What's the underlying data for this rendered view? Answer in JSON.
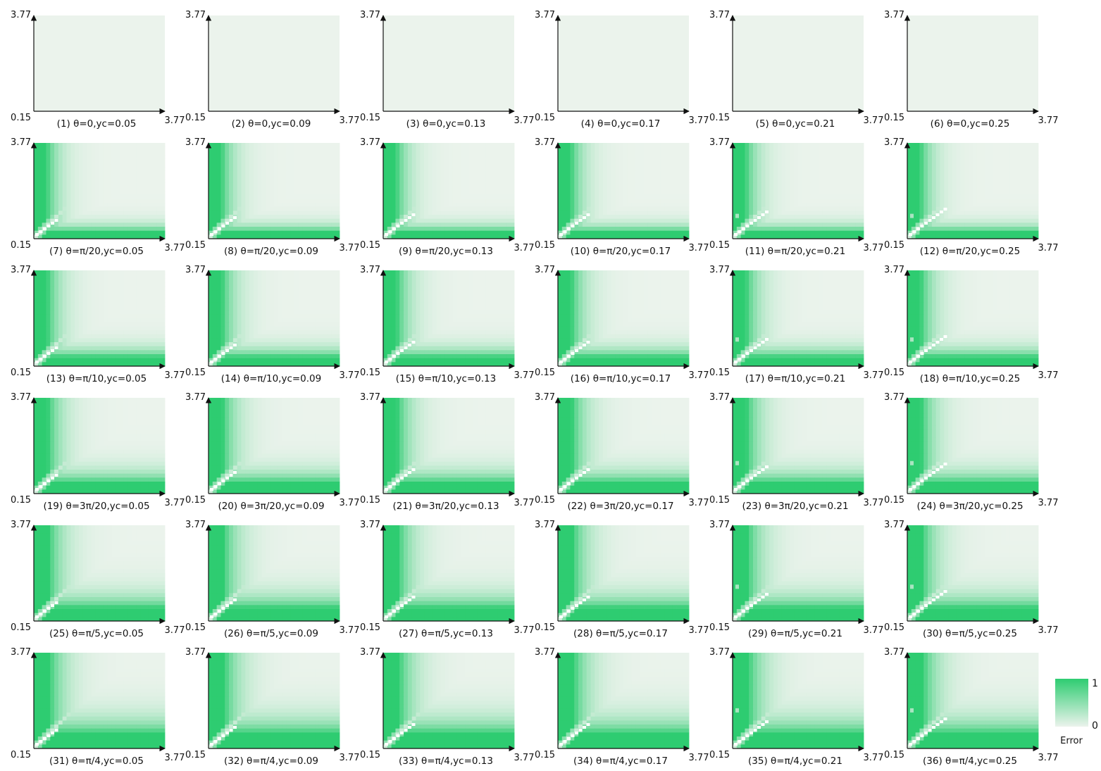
{
  "colorbar": {
    "max_label": "1",
    "min_label": "0",
    "label": "Error",
    "color_low": "#ebf3ec",
    "color_high": "#2ecc71"
  },
  "chart_data": {
    "type": "heatmap",
    "grid": "6x6",
    "x_tick_labels": [
      "0.15",
      "3.77"
    ],
    "y_tick_labels": [
      "0.15",
      "3.77"
    ],
    "xlim": [
      0.15,
      3.77
    ],
    "ylim": [
      0.15,
      3.77
    ],
    "value_range": [
      0,
      1
    ],
    "colormap": [
      "#ebf3ec",
      "#2ecc71"
    ],
    "panels": [
      {
        "label": "(1) θ=0,yc=0.05",
        "theta": "0",
        "yc": 0.05
      },
      {
        "label": "(2) θ=0,yc=0.09",
        "theta": "0",
        "yc": 0.09
      },
      {
        "label": "(3) θ=0,yc=0.13",
        "theta": "0",
        "yc": 0.13
      },
      {
        "label": "(4) θ=0,yc=0.17",
        "theta": "0",
        "yc": 0.17
      },
      {
        "label": "(5) θ=0,yc=0.21",
        "theta": "0",
        "yc": 0.21
      },
      {
        "label": "(6) θ=0,yc=0.25",
        "theta": "0",
        "yc": 0.25
      },
      {
        "label": "(7) θ=π/20,yc=0.05",
        "theta": "π/20",
        "yc": 0.05
      },
      {
        "label": "(8) θ=π/20,yc=0.09",
        "theta": "π/20",
        "yc": 0.09
      },
      {
        "label": "(9) θ=π/20,yc=0.13",
        "theta": "π/20",
        "yc": 0.13
      },
      {
        "label": "(10) θ=π/20,yc=0.17",
        "theta": "π/20",
        "yc": 0.17
      },
      {
        "label": "(11) θ=π/20,yc=0.21",
        "theta": "π/20",
        "yc": 0.21
      },
      {
        "label": "(12) θ=π/20,yc=0.25",
        "theta": "π/20",
        "yc": 0.25
      },
      {
        "label": "(13) θ=π/10,yc=0.05",
        "theta": "π/10",
        "yc": 0.05
      },
      {
        "label": "(14) θ=π/10,yc=0.09",
        "theta": "π/10",
        "yc": 0.09
      },
      {
        "label": "(15) θ=π/10,yc=0.13",
        "theta": "π/10",
        "yc": 0.13
      },
      {
        "label": "(16) θ=π/10,yc=0.17",
        "theta": "π/10",
        "yc": 0.17
      },
      {
        "label": "(17) θ=π/10,yc=0.21",
        "theta": "π/10",
        "yc": 0.21
      },
      {
        "label": "(18) θ=π/10,yc=0.25",
        "theta": "π/10",
        "yc": 0.25
      },
      {
        "label": "(19) θ=3π/20,yc=0.05",
        "theta": "3π/20",
        "yc": 0.05
      },
      {
        "label": "(20) θ=3π/20,yc=0.09",
        "theta": "3π/20",
        "yc": 0.09
      },
      {
        "label": "(21) θ=3π/20,yc=0.13",
        "theta": "3π/20",
        "yc": 0.13
      },
      {
        "label": "(22) θ=3π/20,yc=0.17",
        "theta": "3π/20",
        "yc": 0.17
      },
      {
        "label": "(23) θ=3π/20,yc=0.21",
        "theta": "3π/20",
        "yc": 0.21
      },
      {
        "label": "(24) θ=3π/20,yc=0.25",
        "theta": "3π/20",
        "yc": 0.25
      },
      {
        "label": "(25) θ=π/5,yc=0.05",
        "theta": "π/5",
        "yc": 0.05
      },
      {
        "label": "(26) θ=π/5,yc=0.09",
        "theta": "π/5",
        "yc": 0.09
      },
      {
        "label": "(27) θ=π/5,yc=0.13",
        "theta": "π/5",
        "yc": 0.13
      },
      {
        "label": "(28) θ=π/5,yc=0.17",
        "theta": "π/5",
        "yc": 0.17
      },
      {
        "label": "(29) θ=π/5,yc=0.21",
        "theta": "π/5",
        "yc": 0.21
      },
      {
        "label": "(30) θ=π/5,yc=0.25",
        "theta": "π/5",
        "yc": 0.25
      },
      {
        "label": "(31) θ=π/4,yc=0.05",
        "theta": "π/4",
        "yc": 0.05
      },
      {
        "label": "(32) θ=π/4,yc=0.09",
        "theta": "π/4",
        "yc": 0.09
      },
      {
        "label": "(33) θ=π/4,yc=0.13",
        "theta": "π/4",
        "yc": 0.13
      },
      {
        "label": "(34) θ=π/4,yc=0.17",
        "theta": "π/4",
        "yc": 0.17
      },
      {
        "label": "(35) θ=π/4,yc=0.21",
        "theta": "π/4",
        "yc": 0.21
      },
      {
        "label": "(36) θ=π/4,yc=0.25",
        "theta": "π/4",
        "yc": 0.25
      }
    ]
  }
}
